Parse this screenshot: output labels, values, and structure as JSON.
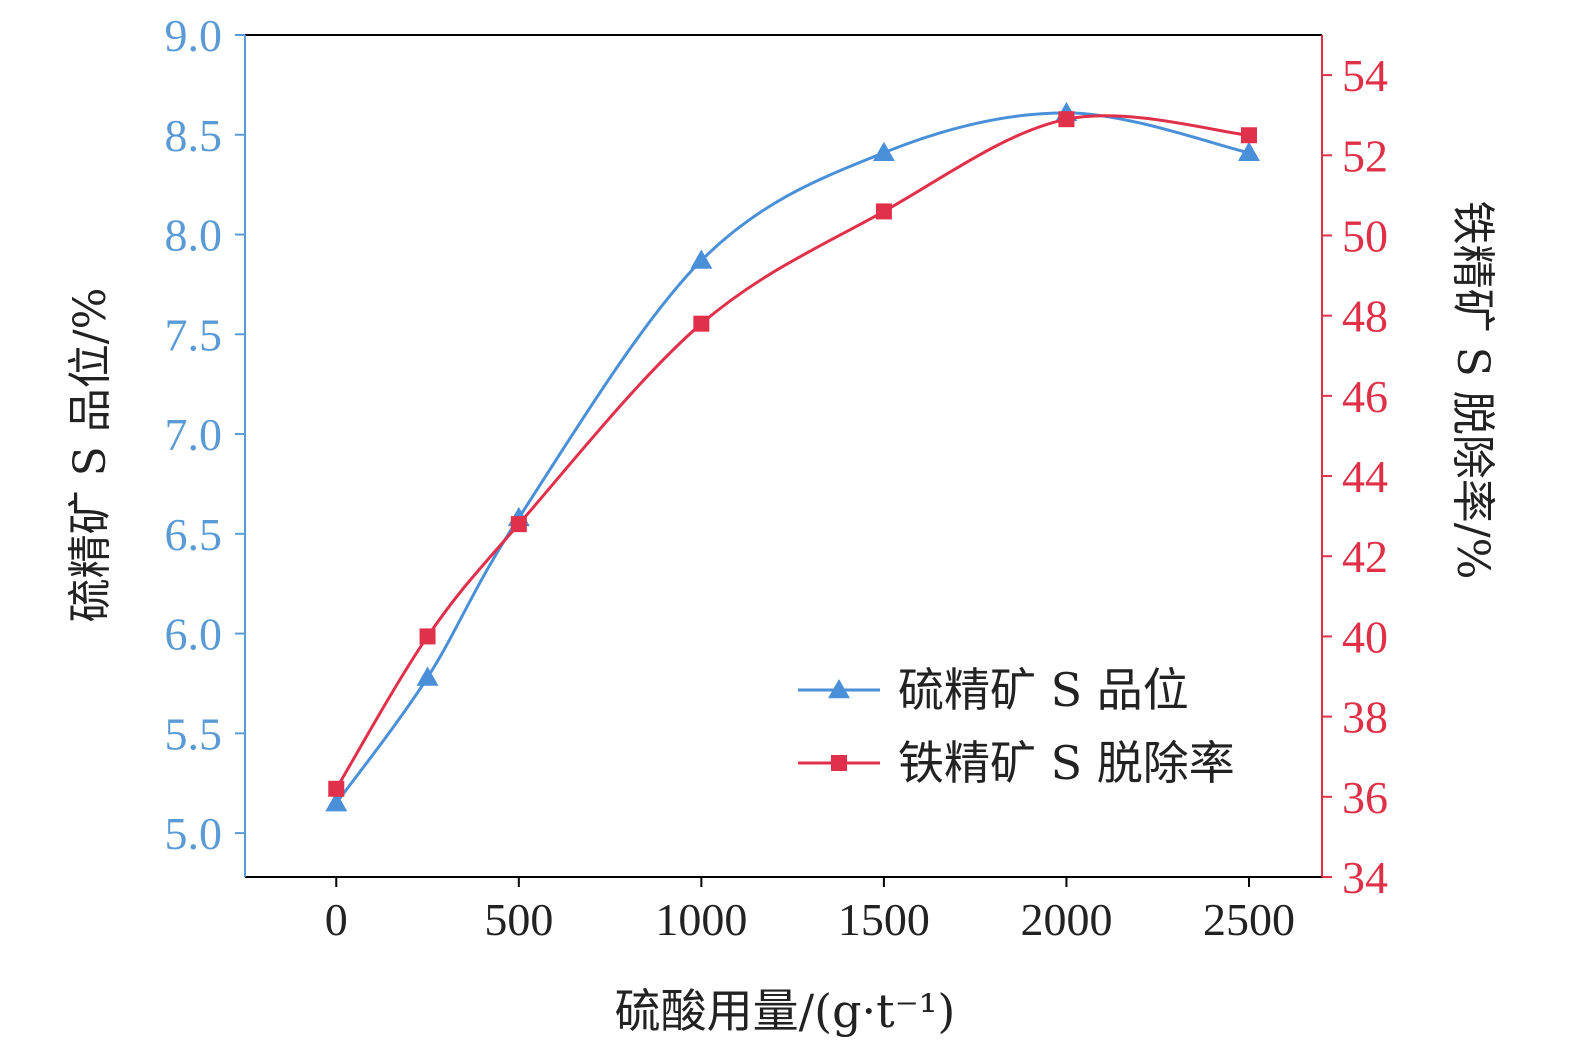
{
  "chart_data": {
    "type": "line",
    "xlabel": "硫酸用量/(g·t⁻¹)",
    "x_ticks": [
      0,
      500,
      1000,
      1500,
      2000,
      2500
    ],
    "xlim": [
      -250,
      2700
    ],
    "y_left": {
      "label": "硫精矿 S 品位/%",
      "ticks": [
        "5.0",
        "5.5",
        "6.0",
        "6.5",
        "7.0",
        "7.5",
        "8.0",
        "8.5",
        "9.0"
      ],
      "ylim": [
        4.78,
        9.0
      ],
      "color": "#5b9bd5"
    },
    "y_right": {
      "label": "铁精矿 S 脱除率/%",
      "ticks": [
        "34",
        "36",
        "38",
        "40",
        "42",
        "44",
        "46",
        "48",
        "50",
        "52",
        "54"
      ],
      "ylim": [
        34,
        55
      ],
      "color": "#e03048"
    },
    "series": [
      {
        "name": "硫精矿 S 品位",
        "axis": "left",
        "marker": "triangle",
        "color": "#4a90d9",
        "x": [
          0,
          250,
          500,
          1000,
          1500,
          2000,
          2500
        ],
        "y": [
          5.15,
          5.78,
          6.58,
          7.87,
          8.41,
          8.61,
          8.41
        ]
      },
      {
        "name": "铁精矿 S 脱除率",
        "axis": "right",
        "marker": "square",
        "color": "#e0304a",
        "x": [
          0,
          250,
          500,
          1000,
          1500,
          2000,
          2500
        ],
        "y": [
          36.2,
          40.0,
          42.8,
          47.8,
          50.6,
          52.9,
          52.5
        ]
      }
    ],
    "legend": "bottom-right",
    "grid": false
  }
}
